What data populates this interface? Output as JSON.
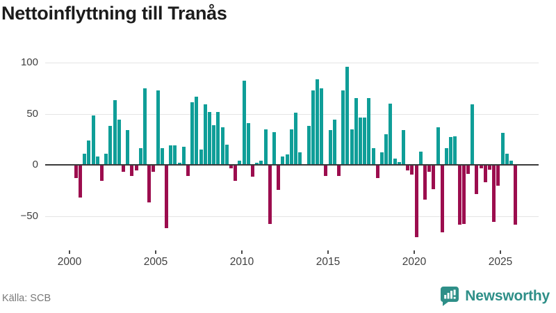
{
  "title": "Nettoinflyttning till Tranås",
  "source_text": "Källa: SCB",
  "branding": {
    "logo_text": "Newsworthy"
  },
  "colors": {
    "positive": "#0F9E98",
    "negative": "#9C0D4E",
    "grid": "#E4E4E4",
    "zero_line": "#3A3A3A",
    "axis_text": "#3F3F3F",
    "title_text": "#1C1C1C",
    "source_text": "#787878",
    "brand": "#2E8F88"
  },
  "chart_data": {
    "type": "bar",
    "title": "Nettoinflyttning till Tranås",
    "frequency": "quarterly",
    "start_year": 2000,
    "start_quarter": 1,
    "x_tick_labels": [
      "2000",
      "2005",
      "2010",
      "2015",
      "2020",
      "2025"
    ],
    "y_ticks": [
      100,
      50,
      0,
      -50
    ],
    "y_tick_labels": [
      "100",
      "50",
      "0",
      "−50"
    ],
    "ylim": [
      -75,
      105
    ],
    "grid": true,
    "legend": false,
    "values": [
      0,
      -12,
      -31,
      11,
      24,
      48,
      8,
      -15,
      11,
      38,
      63,
      44,
      -6,
      34,
      -10,
      -5,
      16,
      75,
      -36,
      -6,
      73,
      16,
      -61,
      19,
      19,
      2,
      18,
      -10,
      61,
      67,
      15,
      59,
      52,
      39,
      52,
      37,
      20,
      -3,
      -15,
      4,
      82,
      41,
      -11,
      2,
      4,
      35,
      -57,
      32,
      -24,
      8,
      10,
      35,
      51,
      12,
      0,
      38,
      73,
      84,
      75,
      -10,
      34,
      44,
      -10,
      73,
      96,
      35,
      65,
      46,
      46,
      65,
      16,
      -12,
      12,
      30,
      60,
      6,
      3,
      34,
      -5,
      -9,
      -70,
      13,
      -33,
      -6,
      -23,
      37,
      -65,
      16,
      27,
      28,
      -58,
      -57,
      -8,
      59,
      -28,
      -3,
      -16,
      -4,
      -55,
      -20,
      31,
      11,
      4,
      -58
    ]
  }
}
